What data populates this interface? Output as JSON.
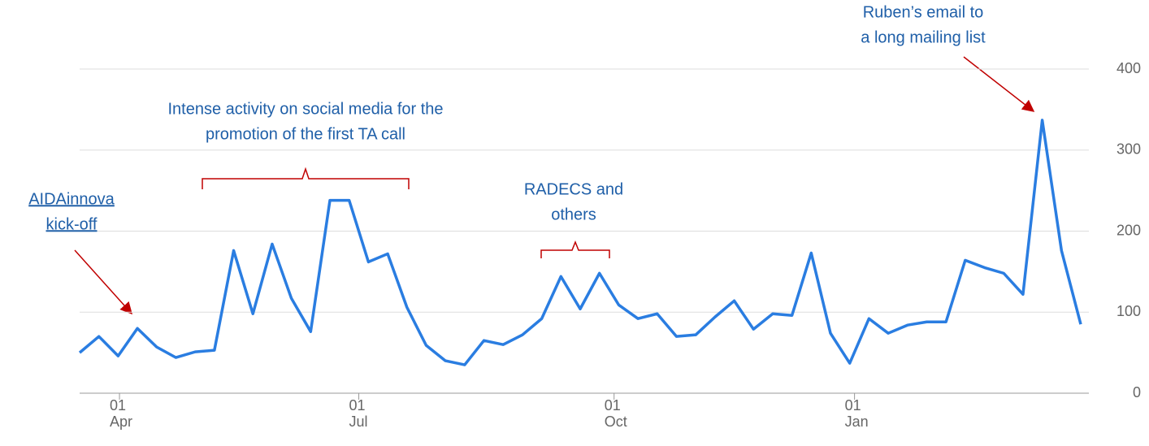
{
  "chart_data": {
    "type": "line",
    "values": [
      50,
      70,
      46,
      80,
      57,
      44,
      51,
      53,
      176,
      98,
      184,
      117,
      76,
      238,
      238,
      162,
      172,
      106,
      59,
      40,
      35,
      65,
      60,
      72,
      92,
      144,
      104,
      148,
      109,
      92,
      98,
      70,
      72,
      94,
      114,
      79,
      98,
      96,
      173,
      74,
      37,
      92,
      74,
      84,
      88,
      88,
      164,
      155,
      148,
      122,
      337,
      176,
      85
    ],
    "color": "#2a7de1",
    "xlim": [
      0,
      52.3
    ],
    "xticks": [
      {
        "value": 2.07,
        "label": "01 Apr"
      },
      {
        "value": 14.5,
        "label": "01 Jul"
      },
      {
        "value": 27.76,
        "label": "01 Oct"
      },
      {
        "value": 40.25,
        "label": "01 Jan"
      }
    ],
    "ylim": [
      0,
      400
    ],
    "yticks": [
      0,
      100,
      200,
      300,
      400
    ],
    "grid": true,
    "annotations": [
      {
        "text": [
          "AIDAinnova",
          "kick-off"
        ]
      },
      {
        "text": [
          "Intense activity on social media for the",
          "promotion of the first TA call"
        ]
      },
      {
        "text": [
          "RADECS and",
          "others"
        ]
      },
      {
        "text": [
          "Ruben’s email to",
          "a long mailing list"
        ]
      }
    ]
  }
}
